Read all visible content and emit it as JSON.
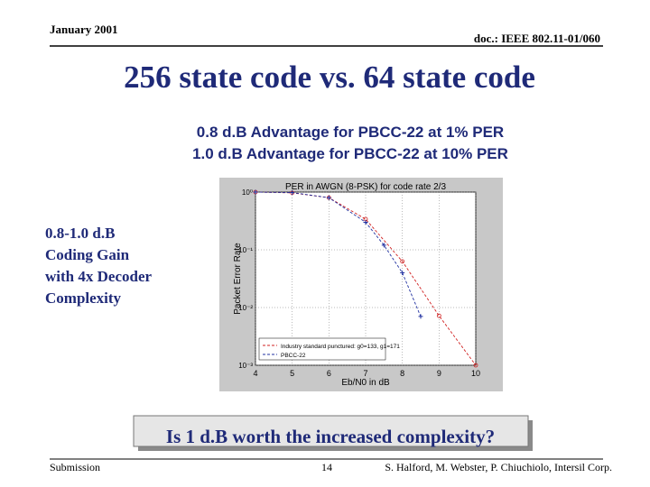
{
  "header": {
    "date": "January 2001",
    "doc": "doc.: IEEE 802.11-01/060"
  },
  "title": "256 state code vs. 64 state code",
  "bullets": [
    "0.8 d.B Advantage for PBCC-22 at 1% PER",
    "1.0 d.B Advantage for PBCC-22 at 10% PER"
  ],
  "side_text": [
    "0.8-1.0 d.B",
    "Coding Gain",
    "with 4x Decoder",
    "Complexity"
  ],
  "chart": {
    "type": "line",
    "title": "PER in AWGN (8-PSK) for code rate 2/3",
    "xlabel": "Eb/N0 in dB",
    "ylabel": "Packet Error Rate",
    "xlim": [
      4,
      10
    ],
    "xticks": [
      4,
      5,
      6,
      7,
      8,
      9,
      10
    ],
    "ylim": [
      0.001,
      1
    ],
    "log_y": true,
    "grid": true,
    "legend": "lower left",
    "yticks": [
      {
        "value": 1,
        "label": "10⁰"
      },
      {
        "value": 0.1,
        "label": "10⁻¹"
      },
      {
        "value": 0.01,
        "label": "10⁻²"
      },
      {
        "value": 0.001,
        "label": "10⁻³"
      }
    ],
    "series": [
      {
        "name": "Industry standard punctured: g0=133, g1=171",
        "color": "#d02020",
        "marker": "o",
        "x": [
          4,
          5,
          6,
          7,
          8,
          9,
          10
        ],
        "values": [
          1,
          0.97,
          0.8,
          0.34,
          0.063,
          0.0072,
          0.001
        ]
      },
      {
        "name": "PBCC-22",
        "color": "#2030a0",
        "marker": "+",
        "x": [
          4,
          5,
          6,
          7,
          7.5,
          8,
          8.5
        ],
        "values": [
          1,
          0.98,
          0.8,
          0.3,
          0.12,
          0.04,
          0.007
        ]
      }
    ]
  },
  "question": "Is 1 d.B worth the increased complexity?",
  "footer": {
    "left": "Submission",
    "page": "14",
    "right": "S. Halford, M. Webster, P. Chiuchiolo, Intersil Corp."
  }
}
